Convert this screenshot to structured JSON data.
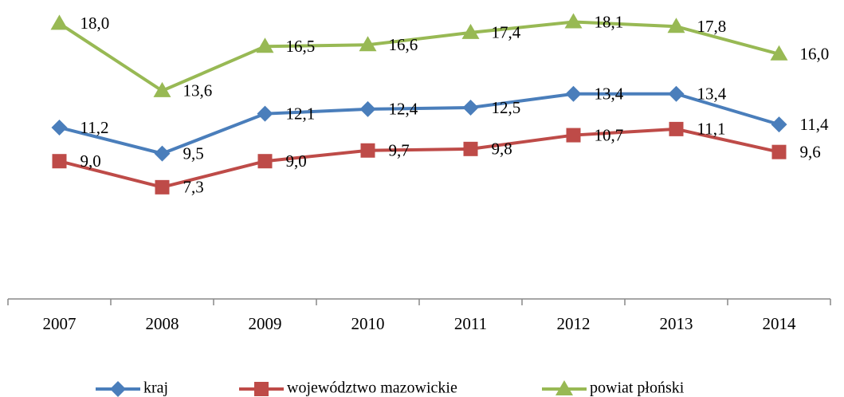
{
  "chart_data": {
    "type": "line",
    "categories": [
      "2007",
      "2008",
      "2009",
      "2010",
      "2011",
      "2012",
      "2013",
      "2014"
    ],
    "series": [
      {
        "name": "kraj",
        "color": "#4a7ebb",
        "marker": "diamond",
        "values": [
          11.2,
          9.5,
          12.1,
          12.4,
          12.5,
          13.4,
          13.4,
          11.4
        ],
        "value_labels": [
          "11,2",
          "9,5",
          "12,1",
          "12,4",
          "12,5",
          "13,4",
          "13,4",
          "11,4"
        ]
      },
      {
        "name": "województwo mazowickie",
        "color": "#be4b48",
        "marker": "square",
        "values": [
          9.0,
          7.3,
          9.0,
          9.7,
          9.8,
          10.7,
          11.1,
          9.6
        ],
        "value_labels": [
          "9,0",
          "7,3",
          "9,0",
          "9,7",
          "9,8",
          "10,7",
          "11,1",
          "9,6"
        ]
      },
      {
        "name": "powiat płoński",
        "color": "#98b954",
        "marker": "triangle",
        "values": [
          18.0,
          13.6,
          16.5,
          16.6,
          17.4,
          18.1,
          17.8,
          16.0
        ],
        "value_labels": [
          "18,0",
          "13,6",
          "16,5",
          "16,6",
          "17,4",
          "18,1",
          "17,8",
          "16,0"
        ]
      }
    ],
    "legend": "bottom"
  }
}
